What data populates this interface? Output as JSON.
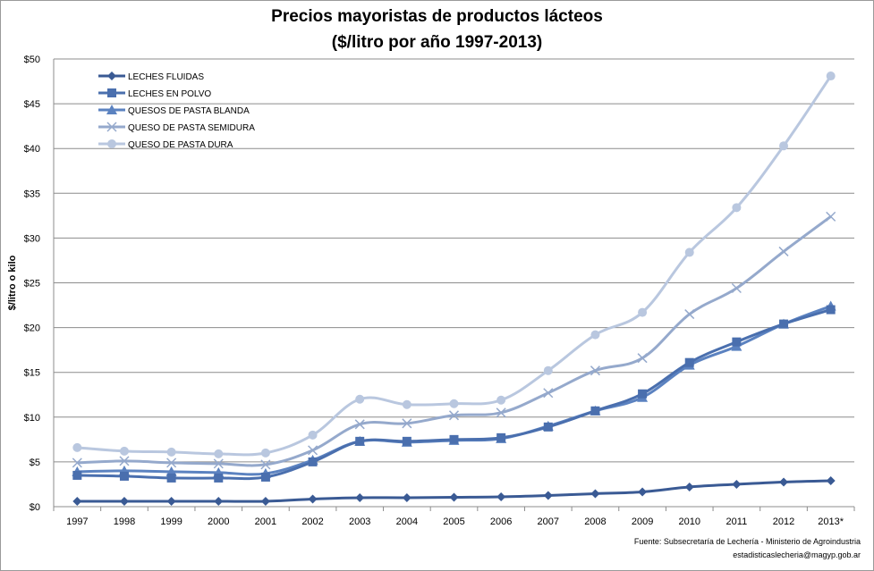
{
  "chart_data": {
    "type": "line",
    "title": "Precios mayoristas de productos lácteos",
    "subtitle": "($/litro por año 1997-2013)",
    "ylabel": "$/litro o kilo",
    "xlabel": "",
    "categories": [
      "1997",
      "1998",
      "1999",
      "2000",
      "2001",
      "2002",
      "2003",
      "2004",
      "2005",
      "2006",
      "2007",
      "2008",
      "2009",
      "2010",
      "2011",
      "2012",
      "2013*"
    ],
    "ylim": [
      0,
      50
    ],
    "yticks": [
      "$0",
      "$5",
      "$10",
      "$15",
      "$20",
      "$25",
      "$30",
      "$35",
      "$40",
      "$45",
      "$50"
    ],
    "grid": true,
    "legend_position": "top-left",
    "series": [
      {
        "name": "LECHES FLUIDAS",
        "color": "#3a5a94",
        "marker": "diamond",
        "values": [
          0.6,
          0.6,
          0.6,
          0.6,
          0.6,
          0.85,
          1.0,
          1.0,
          1.05,
          1.1,
          1.25,
          1.45,
          1.65,
          2.2,
          2.5,
          2.75,
          2.9
        ]
      },
      {
        "name": "LECHES EN POLVO",
        "color": "#4a6fae",
        "marker": "square",
        "values": [
          3.5,
          3.4,
          3.2,
          3.2,
          3.3,
          5.0,
          7.3,
          7.3,
          7.5,
          7.7,
          8.9,
          10.7,
          12.6,
          16.1,
          18.4,
          20.4,
          22.0
        ]
      },
      {
        "name": "QUESOS DE PASTA BLANDA",
        "color": "#5b82c0",
        "marker": "triangle",
        "values": [
          3.9,
          4.0,
          3.9,
          3.8,
          3.7,
          5.2,
          7.3,
          7.2,
          7.4,
          7.6,
          9.0,
          10.7,
          12.2,
          15.8,
          17.9,
          20.4,
          22.4
        ]
      },
      {
        "name": "QUESO DE PASTA SEMIDURA",
        "color": "#95a9cc",
        "marker": "x",
        "values": [
          4.9,
          5.1,
          4.9,
          4.8,
          4.7,
          6.3,
          9.2,
          9.3,
          10.2,
          10.5,
          12.7,
          15.2,
          16.6,
          21.5,
          24.4,
          28.5,
          32.4
        ]
      },
      {
        "name": "QUESO DE PASTA DURA",
        "color": "#b9c7df",
        "marker": "circle",
        "values": [
          6.6,
          6.2,
          6.1,
          5.9,
          6.0,
          8.0,
          12.0,
          11.4,
          11.5,
          11.9,
          15.2,
          19.2,
          21.7,
          28.4,
          33.4,
          40.3,
          48.1
        ]
      }
    ]
  },
  "source_lines": [
    "Fuente: Subsecretaría de Lechería - Ministerio de Agroindustria",
    "estadisticaslecheria@magyp.gob.ar"
  ]
}
